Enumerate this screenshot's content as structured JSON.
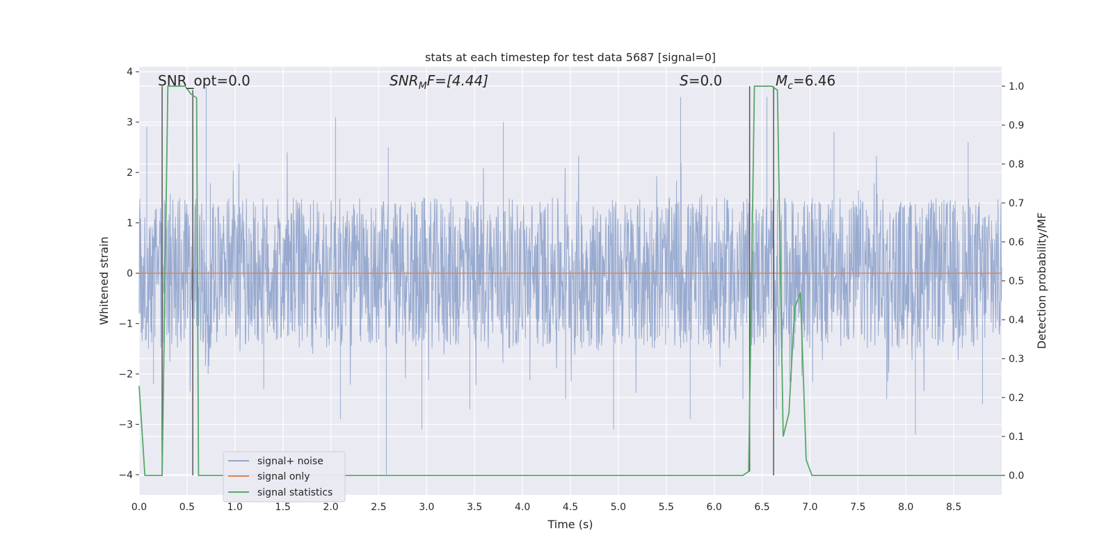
{
  "chart_data": {
    "type": "line",
    "title": "stats at each timestep for test data 5687 [signal=0]",
    "xlabel": "Time (s)",
    "ylabel": "Whitened strain",
    "y2label": "Detection probability/MF",
    "xlim": [
      0.0,
      9.0
    ],
    "ylim": [
      -4.4,
      4.1
    ],
    "y2lim": [
      -0.05,
      1.05
    ],
    "xticks": [
      "0.0",
      "0.5",
      "1.0",
      "1.5",
      "2.0",
      "2.5",
      "3.0",
      "3.5",
      "4.0",
      "4.5",
      "5.0",
      "5.5",
      "6.0",
      "6.5",
      "7.0",
      "7.5",
      "8.0",
      "8.5"
    ],
    "yticks": [
      "4",
      "3",
      "2",
      "1",
      "0",
      "−1",
      "−2",
      "−3",
      "−4"
    ],
    "y2ticks": [
      "1.0",
      "0.9",
      "0.8",
      "0.7",
      "0.6",
      "0.5",
      "0.4",
      "0.3",
      "0.2",
      "0.1",
      "0.0"
    ],
    "grid": true,
    "legend_position": "lower-left",
    "annotations": {
      "snr_opt": "SNR_opt=0.0",
      "snr_mf_main": "SNR",
      "snr_mf_sub": "M",
      "snr_mf_rest": "F=[4.44]",
      "s_main": "S",
      "s_rest": "=0.0",
      "mc_main": "M",
      "mc_sub": "c",
      "mc_rest": "=6.46"
    },
    "series": [
      {
        "name": "signal+ noise",
        "color": "#8fa3cb",
        "sampling": "dense whitened noise, approx. uniform in [-1.5, 1.5] with occasional excursions to ±4",
        "x_range": [
          0.0,
          9.0
        ],
        "envelope": [
          -1.5,
          1.5
        ],
        "spikes": [
          [
            0.08,
            2.9
          ],
          [
            0.15,
            -2.2
          ],
          [
            0.7,
            3.7
          ],
          [
            0.72,
            -2.0
          ],
          [
            1.3,
            -2.3
          ],
          [
            2.05,
            3.1
          ],
          [
            2.1,
            -2.9
          ],
          [
            2.58,
            -4.0
          ],
          [
            2.6,
            2.5
          ],
          [
            2.95,
            -3.1
          ],
          [
            3.45,
            -2.7
          ],
          [
            3.8,
            3.0
          ],
          [
            4.45,
            -2.5
          ],
          [
            4.95,
            -3.1
          ],
          [
            5.65,
            3.5
          ],
          [
            5.75,
            -2.9
          ],
          [
            6.3,
            -2.5
          ],
          [
            6.55,
            3.5
          ],
          [
            6.65,
            -2.7
          ],
          [
            7.25,
            2.8
          ],
          [
            7.8,
            -2.5
          ],
          [
            8.1,
            -3.2
          ],
          [
            8.65,
            2.6
          ],
          [
            8.8,
            -2.6
          ]
        ]
      },
      {
        "name": "signal only",
        "color": "#dd8452",
        "x": [
          0.0,
          9.0
        ],
        "y": [
          0.0,
          0.0
        ]
      },
      {
        "name": "signal statistics",
        "color": "#55a868",
        "axis": "right",
        "x": [
          0.0,
          0.06,
          0.12,
          0.18,
          0.24,
          0.3,
          0.36,
          0.42,
          0.48,
          0.54,
          0.6,
          0.62,
          0.66,
          6.3,
          6.36,
          6.42,
          6.48,
          6.54,
          6.6,
          6.66,
          6.72,
          6.78,
          6.84,
          6.9,
          6.96,
          7.02,
          7.08,
          9.0
        ],
        "y": [
          0.23,
          0.0,
          0.0,
          0.0,
          0.0,
          1.0,
          1.0,
          1.0,
          1.0,
          0.98,
          0.97,
          0.0,
          0.0,
          0.0,
          0.01,
          1.0,
          1.0,
          1.0,
          1.0,
          0.99,
          0.1,
          0.16,
          0.43,
          0.47,
          0.04,
          0.0,
          0.0,
          0.0
        ]
      }
    ],
    "markers": [
      {
        "name": "vline",
        "x": 0.24,
        "y_from": 0.0,
        "y_to": 1.0
      },
      {
        "name": "vline",
        "x": 0.56,
        "y_from": 0.0,
        "y_to": 0.99
      },
      {
        "name": "vline",
        "x": 6.37,
        "y_from": 0.01,
        "y_to": 1.0
      },
      {
        "name": "vline",
        "x": 6.62,
        "y_from": 0.0,
        "y_to": 1.0
      }
    ]
  }
}
